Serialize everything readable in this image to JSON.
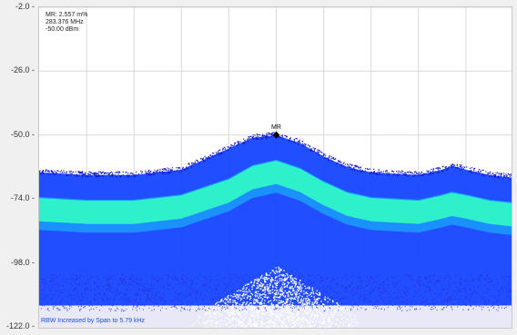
{
  "marker": {
    "label": "MR",
    "readout": [
      "MR: 2.557 m%",
      "283.376 MHz",
      "-50.00 dBm"
    ],
    "level_dbm": -50.0,
    "frequency": "283.376 MHz"
  },
  "footer_note": "RBW Increased by Span to 5.79 kHz",
  "colors": {
    "dense": "#2ff5c8",
    "mid": "#1aa8ff",
    "body": "#1545ff",
    "edge": "#1414c8",
    "sparse": "#2a2ad0",
    "marker": "#000000",
    "grid": "#d9d9d9"
  },
  "chart_data": {
    "type": "heatmap",
    "title": "",
    "xlabel": "",
    "ylabel": "",
    "ylim": [
      -122.0,
      -2.0
    ],
    "y_tick_labels": [
      "-2.0",
      "-26.0",
      "-50.0",
      "-74.0",
      "-98.0",
      "-122.0"
    ],
    "y_ticks": [
      -2.0,
      -26.0,
      -50.0,
      -74.0,
      -98.0,
      -122.0
    ],
    "x_divisions": 10,
    "grid": true,
    "envelope": {
      "x": [
        0.0,
        0.1,
        0.2,
        0.3,
        0.4,
        0.45,
        0.5,
        0.55,
        0.6,
        0.65,
        0.7,
        0.8,
        0.85,
        0.87,
        0.9,
        0.95,
        1.0
      ],
      "top_dbm": [
        -64,
        -65,
        -65,
        -63,
        -55,
        -51,
        -50,
        -53,
        -58,
        -62,
        -64,
        -65,
        -63,
        -61.5,
        -63,
        -65,
        -66
      ],
      "dense_band_center_dbm": [
        -78,
        -79,
        -79,
        -77,
        -71,
        -66,
        -64,
        -67,
        -72,
        -76,
        -78,
        -79,
        -77,
        -76,
        -77,
        -79,
        -80
      ],
      "dense_band_width_db": 4
    },
    "noise_floor_dbm": -114
  }
}
